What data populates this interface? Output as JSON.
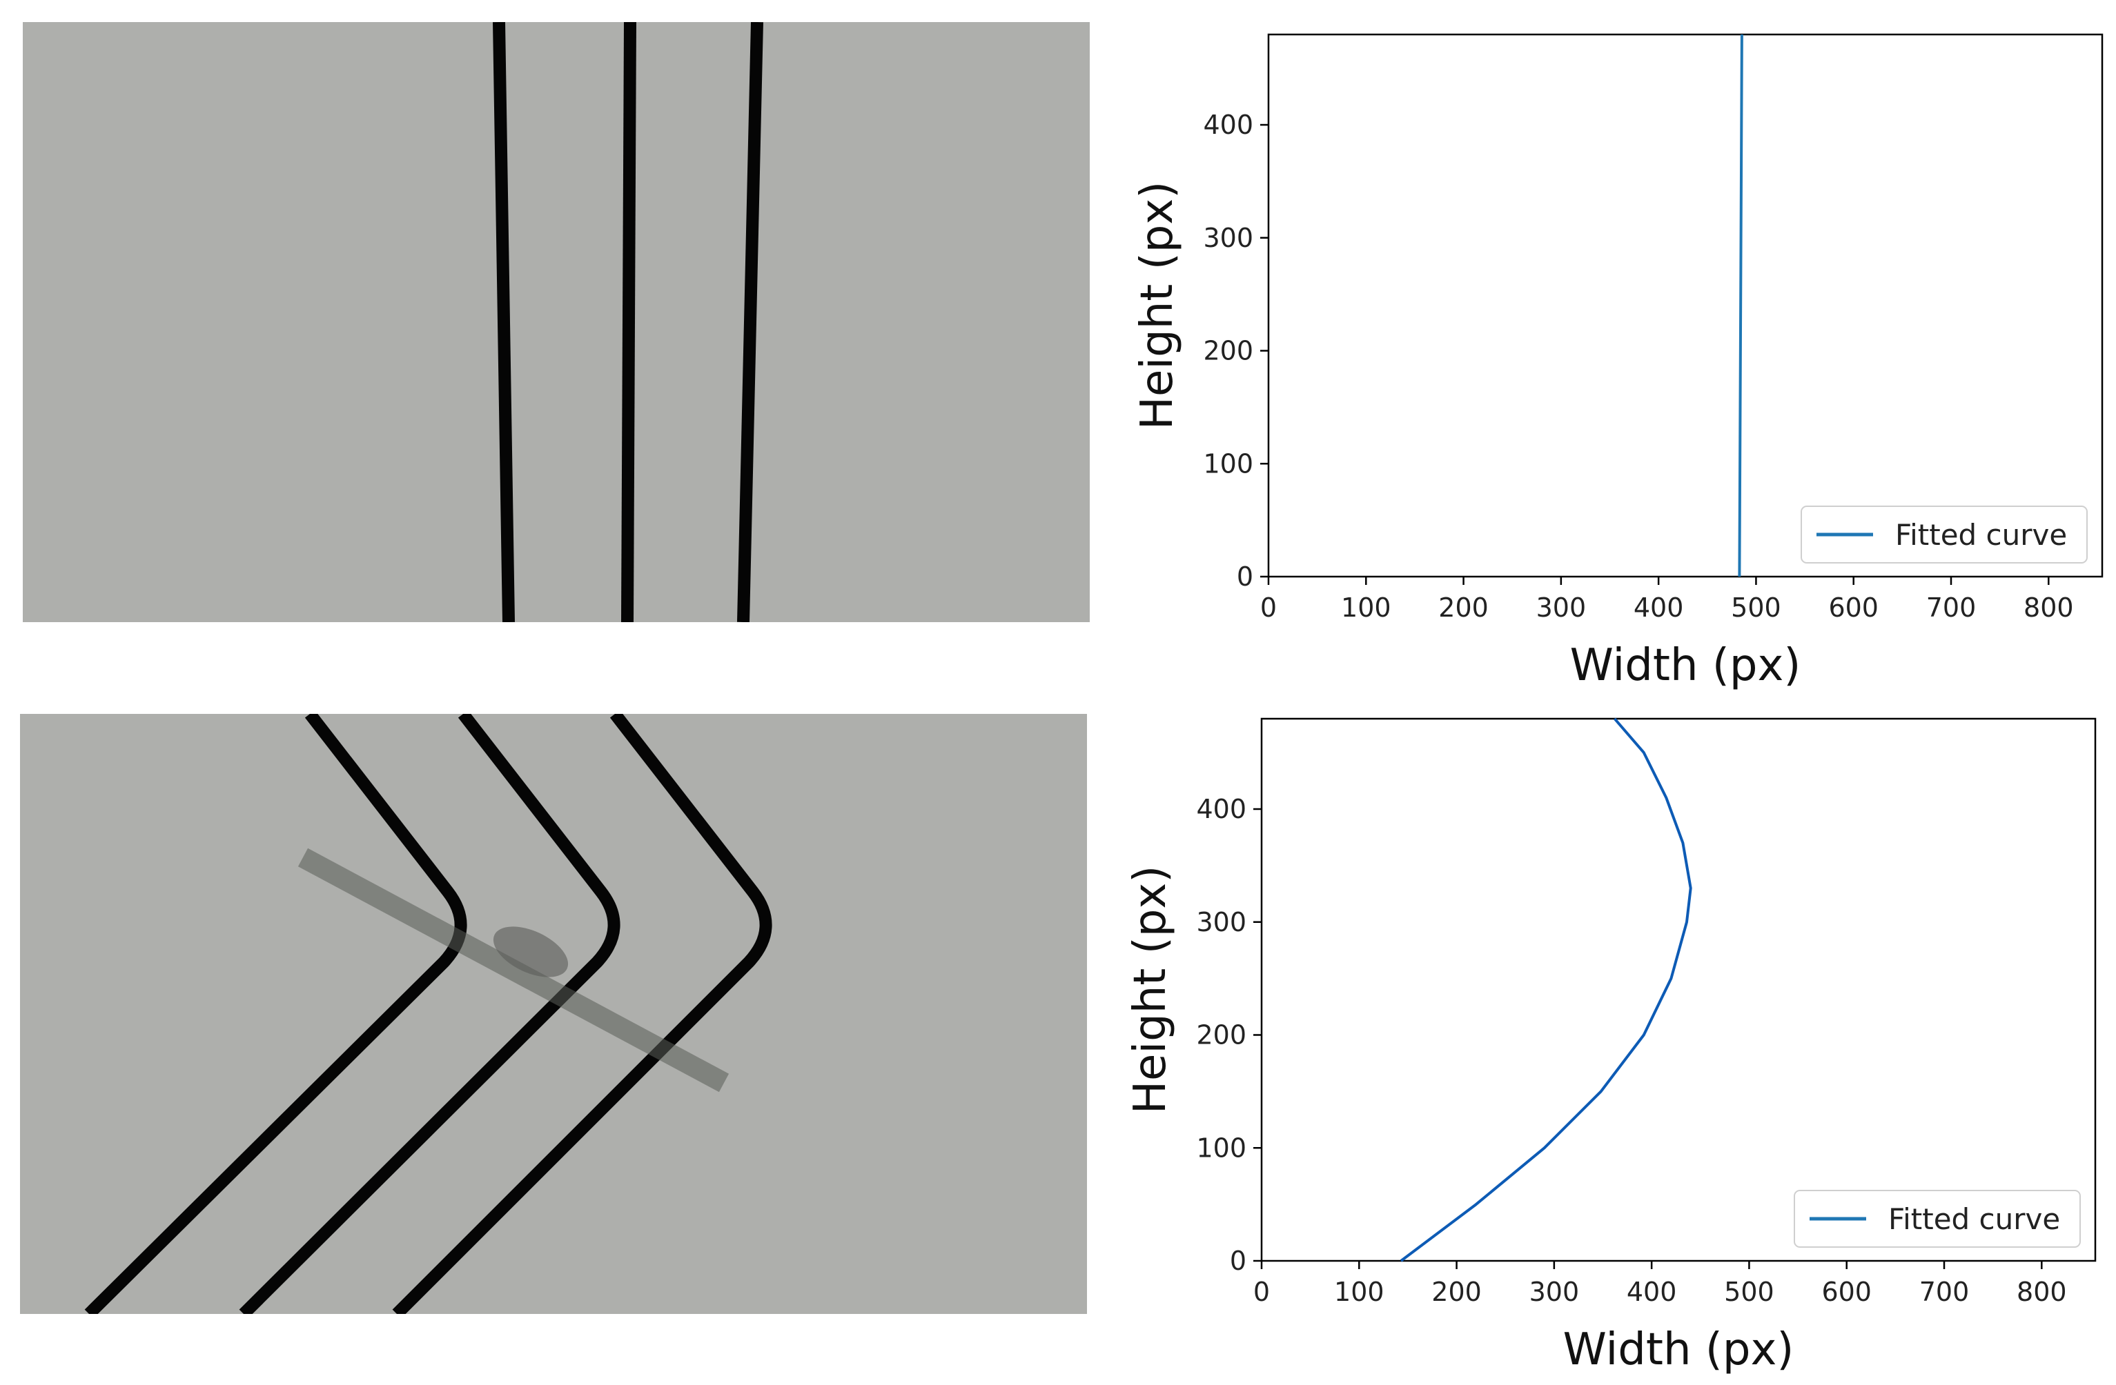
{
  "figure": {
    "panels": [
      {
        "id": "top-image",
        "kind": "image",
        "scene": "three nearly vertical dark lane lines on a gray ground"
      },
      {
        "id": "bottom-image",
        "kind": "image",
        "scene": "three chevron-shaped dark lane lines with a translucent obstruction bar"
      }
    ],
    "colors": {
      "ground": "#aeafac",
      "line": "#050505",
      "curve": "#1f77b4",
      "curve_bottom": "#0d5bb5"
    }
  },
  "chart_data": [
    {
      "type": "line",
      "title": "",
      "xlabel": "Width (px)",
      "ylabel": "Height (px)",
      "xlim": [
        0,
        855
      ],
      "ylim": [
        0,
        480
      ],
      "xticks": [
        0,
        100,
        200,
        300,
        400,
        500,
        600,
        700,
        800
      ],
      "yticks": [
        0,
        100,
        200,
        300,
        400
      ],
      "legend": "lower-right",
      "grid": false,
      "series": [
        {
          "name": "Fitted curve",
          "x": [
            483,
            483.5,
            484,
            484.5,
            485,
            485.5
          ],
          "y": [
            0,
            96,
            192,
            288,
            384,
            480
          ]
        }
      ]
    },
    {
      "type": "line",
      "title": "",
      "xlabel": "Width (px)",
      "ylabel": "Height (px)",
      "xlim": [
        0,
        855
      ],
      "ylim": [
        0,
        480
      ],
      "xticks": [
        0,
        100,
        200,
        300,
        400,
        500,
        600,
        700,
        800
      ],
      "yticks": [
        0,
        100,
        200,
        300,
        400
      ],
      "legend": "lower-right",
      "grid": false,
      "series": [
        {
          "name": "Fitted curve",
          "x": [
            143,
            220,
            290,
            348,
            392,
            420,
            436,
            440,
            432,
            415,
            392,
            362
          ],
          "y": [
            0,
            50,
            100,
            150,
            200,
            250,
            300,
            330,
            370,
            410,
            450,
            480
          ]
        }
      ]
    }
  ]
}
